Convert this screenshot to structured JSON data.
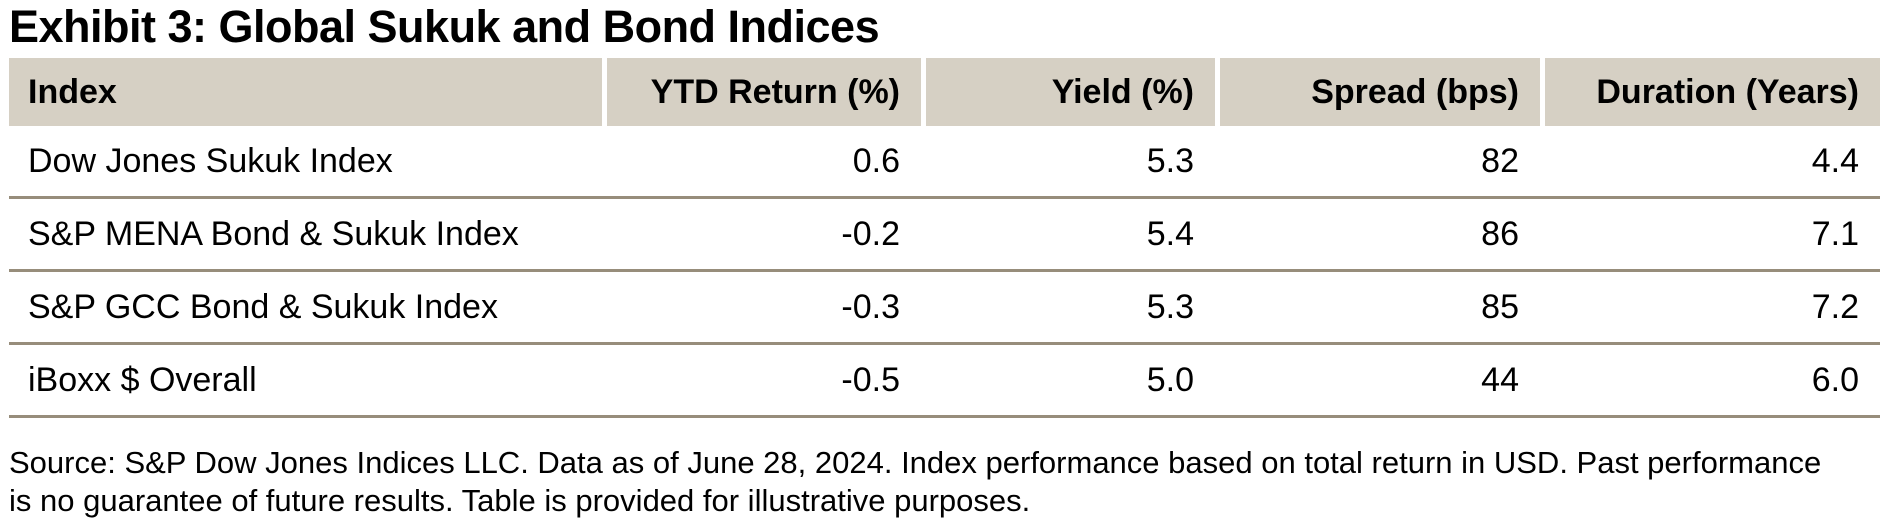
{
  "title": "Exhibit 3: Global Sukuk and Bond Indices",
  "table": {
    "columns": [
      "Index",
      "YTD Return (%)",
      "Yield (%)",
      "Spread (bps)",
      "Duration (Years)"
    ],
    "rows": [
      {
        "index": "Dow Jones Sukuk Index",
        "ytd_return": "0.6",
        "yield": "5.3",
        "spread": "82",
        "duration": "4.4"
      },
      {
        "index": "S&P MENA Bond & Sukuk Index",
        "ytd_return": "-0.2",
        "yield": "5.4",
        "spread": "86",
        "duration": "7.1"
      },
      {
        "index": "S&P GCC Bond & Sukuk Index",
        "ytd_return": "-0.3",
        "yield": "5.3",
        "spread": "85",
        "duration": "7.2"
      },
      {
        "index": "iBoxx $ Overall",
        "ytd_return": "-0.5",
        "yield": "5.0",
        "spread": "44",
        "duration": "6.0"
      }
    ]
  },
  "source": {
    "lines": [
      "Source: S&P Dow Jones Indices LLC. Data as of June 28, 2024. Index performance based on total return in USD. Past performance",
      "is no guarantee of future results. Table is provided for illustrative purposes."
    ]
  },
  "colors": {
    "header_background": "#d6d0c4",
    "row_divider": "#978d7b",
    "text": "#000000",
    "page_background": "#ffffff"
  }
}
